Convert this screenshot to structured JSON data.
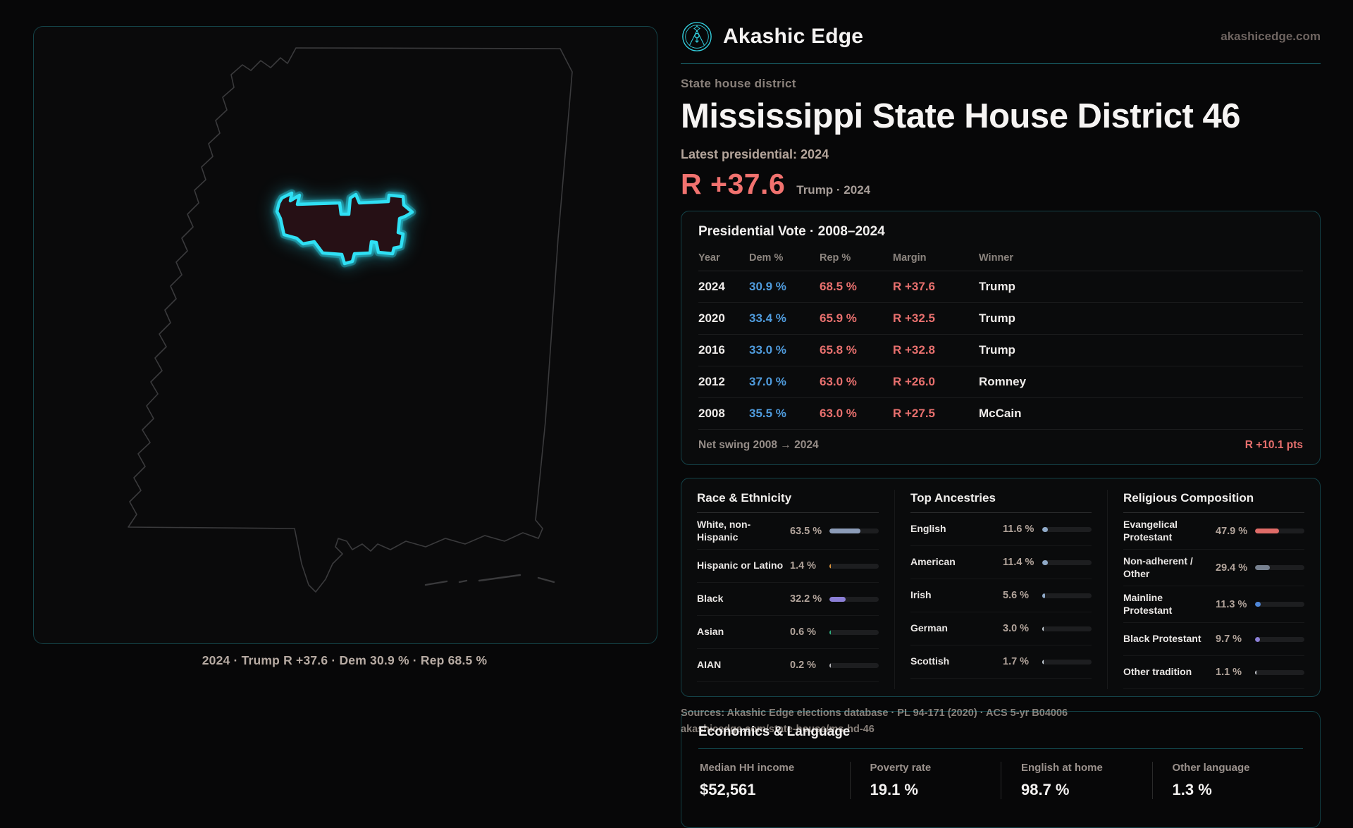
{
  "colors": {
    "accent": "#2fd4e6",
    "dem_blue": "#4f9bdc",
    "rep_red": "#e8706e",
    "margin_red": "#f1726f"
  },
  "header": {
    "brand": "Akashic Edge",
    "domain": "akashicedge.com",
    "eyebrow": "State house district",
    "title": "Mississippi State House District 46",
    "latest_label": "Latest presidential: 2024",
    "margin_value": "R +37.6",
    "margin_note": "Trump · 2024"
  },
  "map": {
    "caption": "2024 · Trump R +37.6 · Dem 30.9 % · Rep 68.5 %"
  },
  "presidential_table": {
    "title": "Presidential Vote · 2008–2024",
    "columns": [
      "Year",
      "Dem %",
      "Rep %",
      "Margin",
      "Winner"
    ],
    "rows": [
      {
        "year": "2024",
        "dem": "30.9 %",
        "rep": "68.5 %",
        "margin": "R +37.6",
        "winner": "Trump"
      },
      {
        "year": "2020",
        "dem": "33.4 %",
        "rep": "65.9 %",
        "margin": "R +32.5",
        "winner": "Trump"
      },
      {
        "year": "2016",
        "dem": "33.0 %",
        "rep": "65.8 %",
        "margin": "R +32.8",
        "winner": "Trump"
      },
      {
        "year": "2012",
        "dem": "37.0 %",
        "rep": "63.0 %",
        "margin": "R +26.0",
        "winner": "Romney"
      },
      {
        "year": "2008",
        "dem": "35.5 %",
        "rep": "63.0 %",
        "margin": "R +27.5",
        "winner": "McCain"
      }
    ],
    "net_swing_label": "Net swing 2008 → 2024",
    "net_swing_value": "R +10.1 pts"
  },
  "demographics": {
    "panels": [
      {
        "title": "Race & Ethnicity",
        "rows": [
          {
            "label": "White, non-Hispanic",
            "value": "63.5 %",
            "pct": 63.5,
            "color": "#8c9cb8"
          },
          {
            "label": "Hispanic or Latino",
            "value": "1.4 %",
            "pct": 1.4,
            "color": "#e0963c"
          },
          {
            "label": "Black",
            "value": "32.2 %",
            "pct": 32.2,
            "color": "#8b7fd6"
          },
          {
            "label": "Asian",
            "value": "0.6 %",
            "pct": 0.6,
            "color": "#2fae7e"
          },
          {
            "label": "AIAN",
            "value": "0.2 %",
            "pct": 0.2,
            "color": "#b9b9bd"
          }
        ]
      },
      {
        "title": "Top Ancestries",
        "rows": [
          {
            "label": "English",
            "value": "11.6 %",
            "pct": 11.6,
            "color": "#8fa9c7"
          },
          {
            "label": "American",
            "value": "11.4 %",
            "pct": 11.4,
            "color": "#8fa9c7"
          },
          {
            "label": "Irish",
            "value": "5.6 %",
            "pct": 5.6,
            "color": "#8fa9c7"
          },
          {
            "label": "German",
            "value": "3.0 %",
            "pct": 3.0,
            "color": "#cdd5dd"
          },
          {
            "label": "Scottish",
            "value": "1.7 %",
            "pct": 1.7,
            "color": "#cdd5dd"
          }
        ]
      },
      {
        "title": "Religious Composition",
        "rows": [
          {
            "label": "Evangelical Protestant",
            "value": "47.9 %",
            "pct": 47.9,
            "color": "#e06c68"
          },
          {
            "label": "Non-adherent / Other",
            "value": "29.4 %",
            "pct": 29.4,
            "color": "#76808f"
          },
          {
            "label": "Mainline Protestant",
            "value": "11.3 %",
            "pct": 11.3,
            "color": "#4f87d8"
          },
          {
            "label": "Black Protestant",
            "value": "9.7 %",
            "pct": 9.7,
            "color": "#8b7fd6"
          },
          {
            "label": "Other tradition",
            "value": "1.1 %",
            "pct": 1.1,
            "color": "#c9cdd2"
          }
        ]
      }
    ]
  },
  "economics": {
    "title": "Economics & Language",
    "stats": [
      {
        "label": "Median HH income",
        "value": "$52,561"
      },
      {
        "label": "Poverty rate",
        "value": "19.1 %"
      },
      {
        "label": "English at home",
        "value": "98.7 %"
      },
      {
        "label": "Other language",
        "value": "1.3 %"
      }
    ]
  },
  "source": {
    "line1": "Sources: Akashic Edge elections database · PL 94-171 (2020) · ACS 5-yr B04006",
    "line2": "akashicedge.com/state-house/ms-hd-46"
  }
}
